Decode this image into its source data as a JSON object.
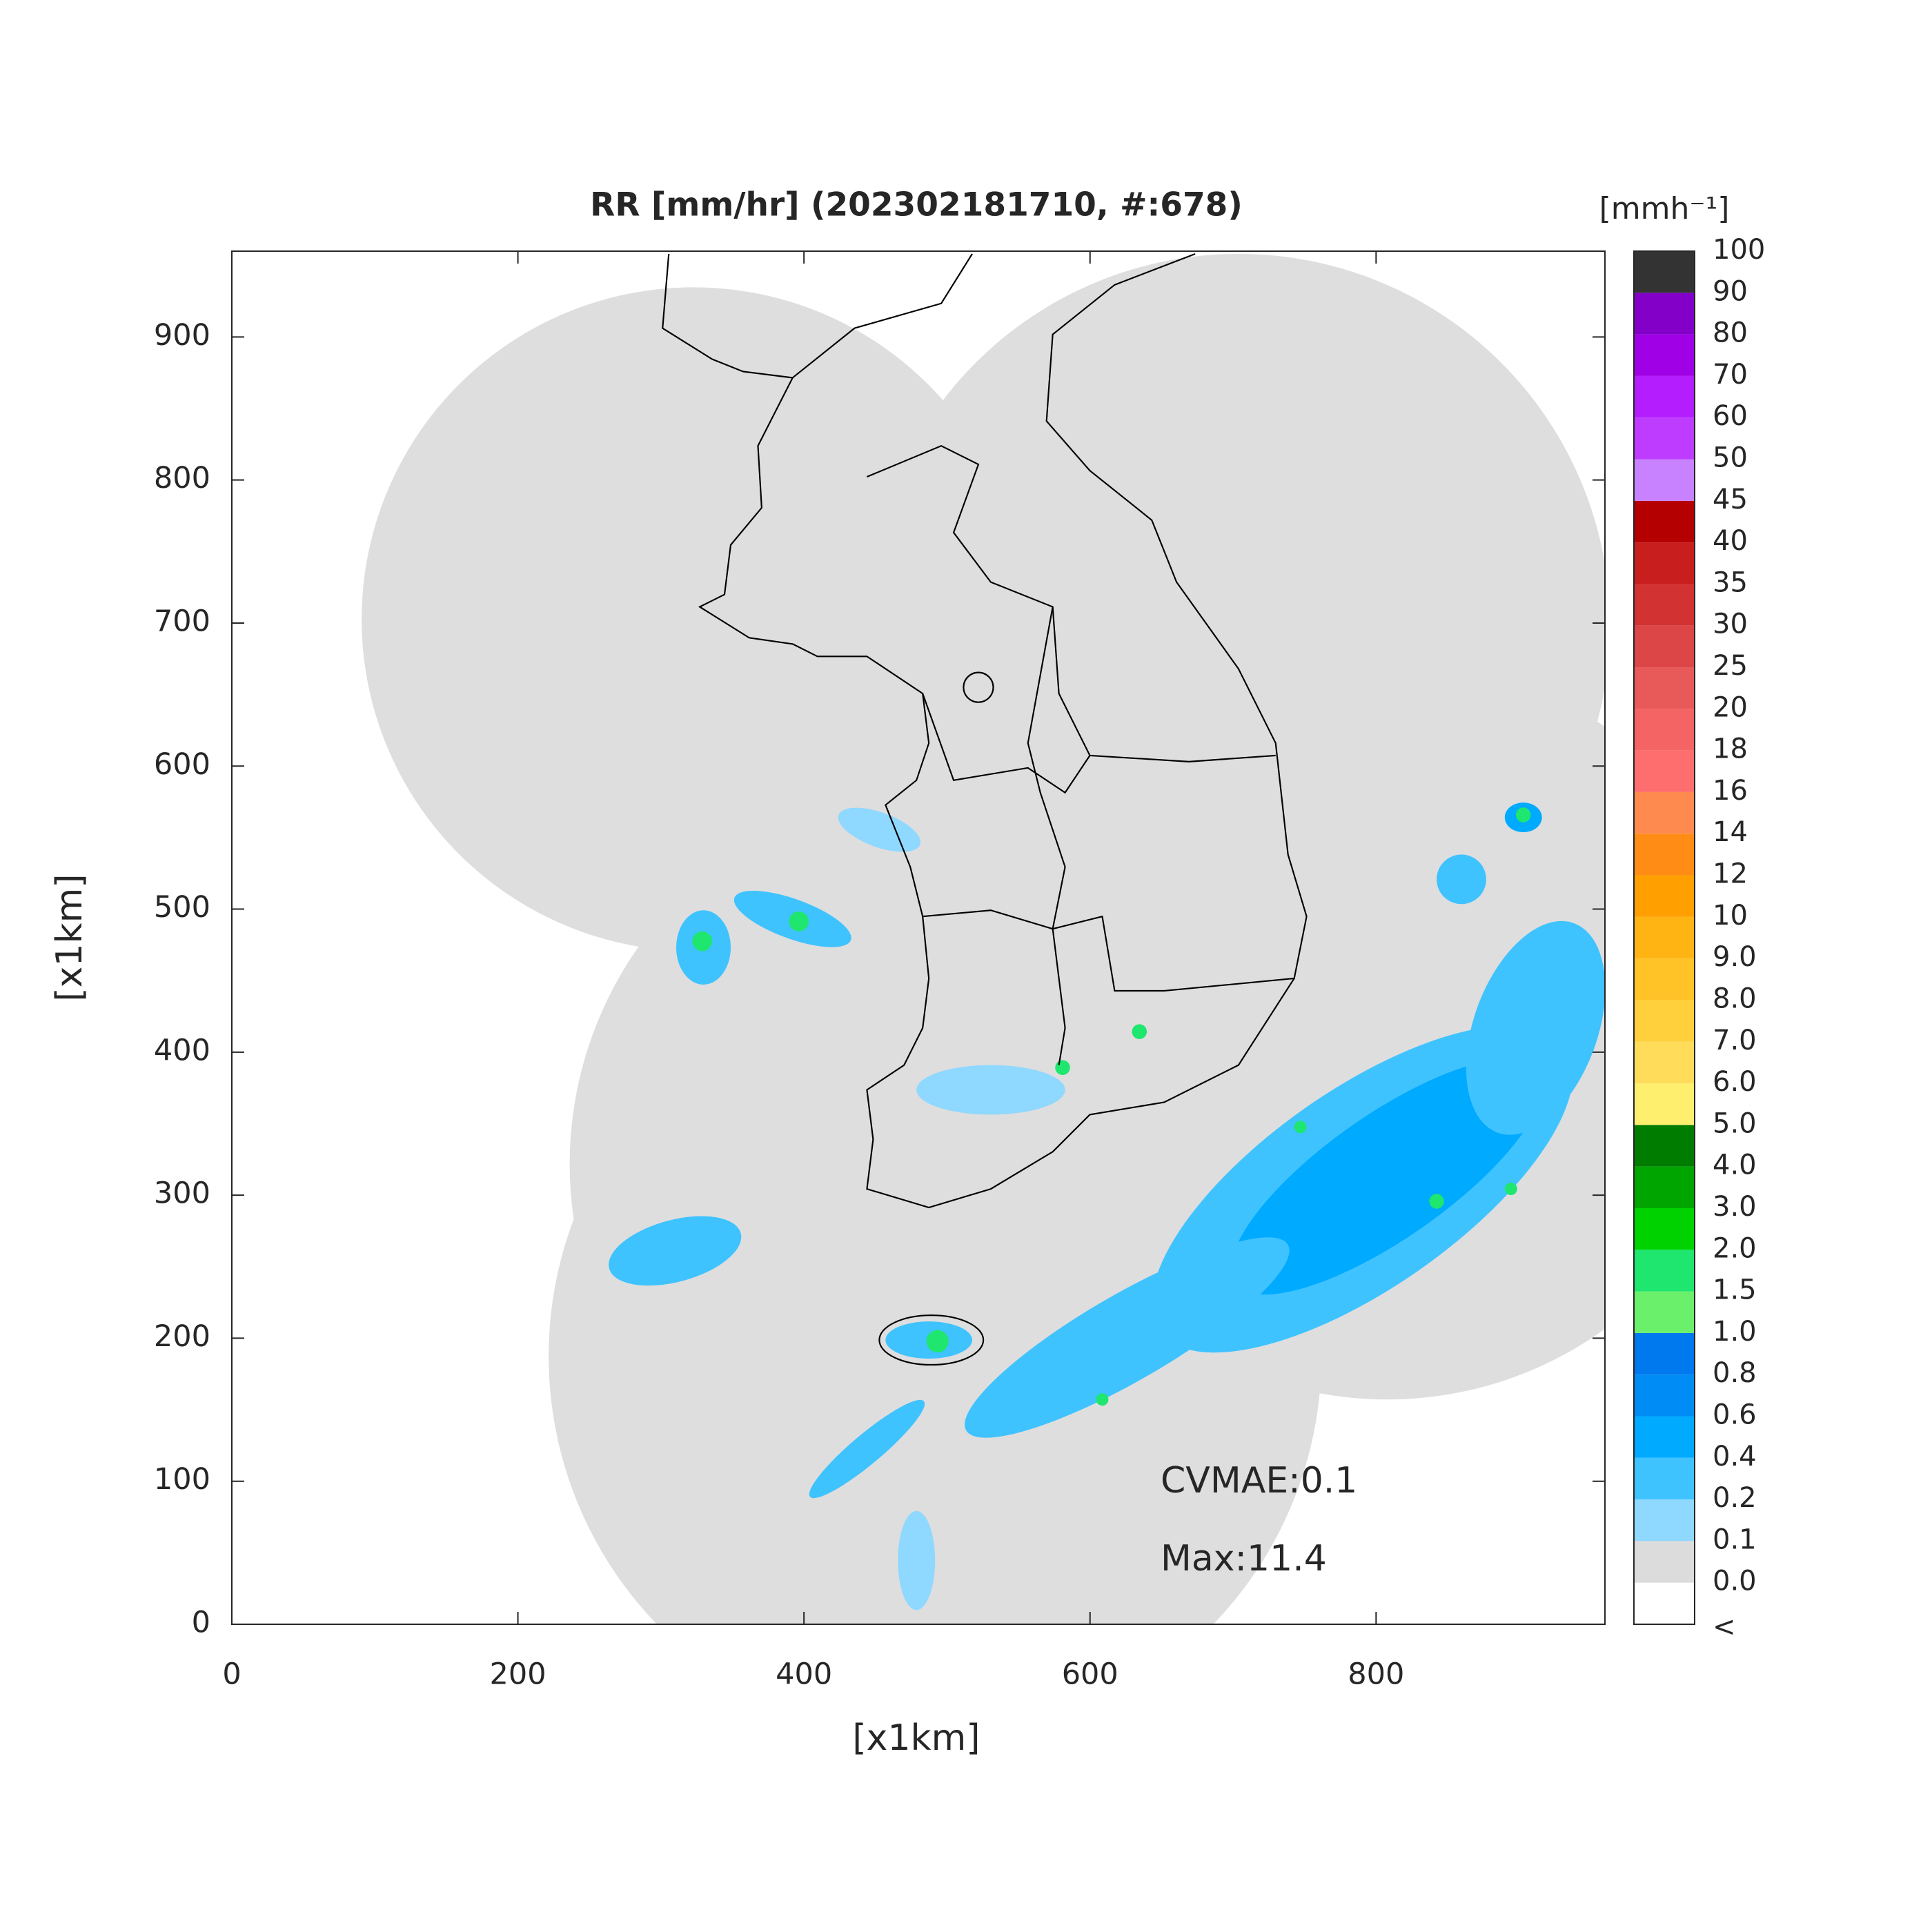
{
  "chart_data": {
    "type": "map",
    "title": "RR [mm/hr] (202302181710, #:678)",
    "x_label": "[x1km]",
    "y_label": "[x1km]",
    "xlim": [
      0,
      960
    ],
    "ylim": [
      0,
      960
    ],
    "xticks": [
      0,
      200,
      400,
      600,
      800
    ],
    "yticks": [
      0,
      100,
      200,
      300,
      400,
      500,
      600,
      700,
      800,
      900
    ],
    "annotations": [
      "CVMAE:0.1",
      "Max:11.4"
    ],
    "colorbar": {
      "unit": "[mmh⁻¹]",
      "labels": [
        "<",
        "0.0",
        "0.1",
        "0.2",
        "0.4",
        "0.6",
        "0.8",
        "1.0",
        "1.5",
        "2.0",
        "3.0",
        "4.0",
        "5.0",
        "6.0",
        "7.0",
        "8.0",
        "9.0",
        "10",
        "12",
        "14",
        "16",
        "18",
        "20",
        "25",
        "30",
        "35",
        "40",
        "45",
        "50",
        "60",
        "70",
        "80",
        "90",
        "100"
      ],
      "colors": [
        "#ffffff",
        "#dcdcdc",
        "#8fd8ff",
        "#3fc3ff",
        "#00aaff",
        "#008cf5",
        "#0078ee",
        "#6bf06b",
        "#1ee66e",
        "#00d200",
        "#00a500",
        "#007d00",
        "#ffef6e",
        "#ffdc5a",
        "#ffd03c",
        "#ffc328",
        "#ffb414",
        "#ffa000",
        "#ff8c14",
        "#ff8a50",
        "#ff6e6e",
        "#f56464",
        "#e85a5a",
        "#dc4646",
        "#d23232",
        "#c81e1e",
        "#b40000",
        "#c882ff",
        "#be3cff",
        "#b41eff",
        "#a000e6",
        "#8200c8",
        "#333333"
      ]
    }
  }
}
